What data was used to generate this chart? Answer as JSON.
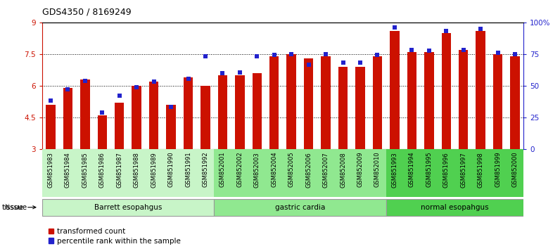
{
  "title": "GDS4350 / 8169249",
  "samples": [
    "GSM851983",
    "GSM851984",
    "GSM851985",
    "GSM851986",
    "GSM851987",
    "GSM851988",
    "GSM851989",
    "GSM851990",
    "GSM851991",
    "GSM851992",
    "GSM852001",
    "GSM852002",
    "GSM852003",
    "GSM852004",
    "GSM852005",
    "GSM852006",
    "GSM852007",
    "GSM852008",
    "GSM852009",
    "GSM852010",
    "GSM851993",
    "GSM851994",
    "GSM851995",
    "GSM851996",
    "GSM851997",
    "GSM851998",
    "GSM851999",
    "GSM852000"
  ],
  "red_values": [
    5.1,
    5.9,
    6.3,
    4.6,
    5.2,
    6.0,
    6.2,
    5.1,
    6.4,
    6.0,
    6.5,
    6.5,
    6.6,
    7.4,
    7.5,
    7.3,
    7.4,
    6.9,
    6.9,
    7.4,
    8.6,
    7.6,
    7.6,
    8.5,
    7.7,
    8.6,
    7.5,
    7.4
  ],
  "blue_values": [
    5.3,
    5.85,
    6.25,
    4.75,
    5.55,
    5.95,
    6.2,
    5.0,
    6.35,
    7.4,
    6.6,
    6.65,
    7.4,
    7.45,
    7.5,
    7.0,
    7.5,
    7.1,
    7.1,
    7.45,
    8.75,
    7.7,
    7.65,
    8.6,
    7.7,
    8.7,
    7.55,
    7.5
  ],
  "groups": [
    {
      "label": "Barrett esopahgus",
      "start": 0,
      "end": 10,
      "color": "#c8f5c8"
    },
    {
      "label": "gastric cardia",
      "start": 10,
      "end": 20,
      "color": "#90e890"
    },
    {
      "label": "normal esopahgus",
      "start": 20,
      "end": 28,
      "color": "#50d050"
    }
  ],
  "ylim_left": [
    3,
    9
  ],
  "ylim_right": [
    0,
    100
  ],
  "yticks_left": [
    3,
    4.5,
    6,
    7.5,
    9
  ],
  "yticks_right": [
    0,
    25,
    50,
    75,
    100
  ],
  "red_color": "#cc1100",
  "blue_color": "#2222cc",
  "bar_width": 0.55,
  "legend_items": [
    "transformed count",
    "percentile rank within the sample"
  ],
  "dotted_lines": [
    4.5,
    6.0,
    7.5
  ]
}
